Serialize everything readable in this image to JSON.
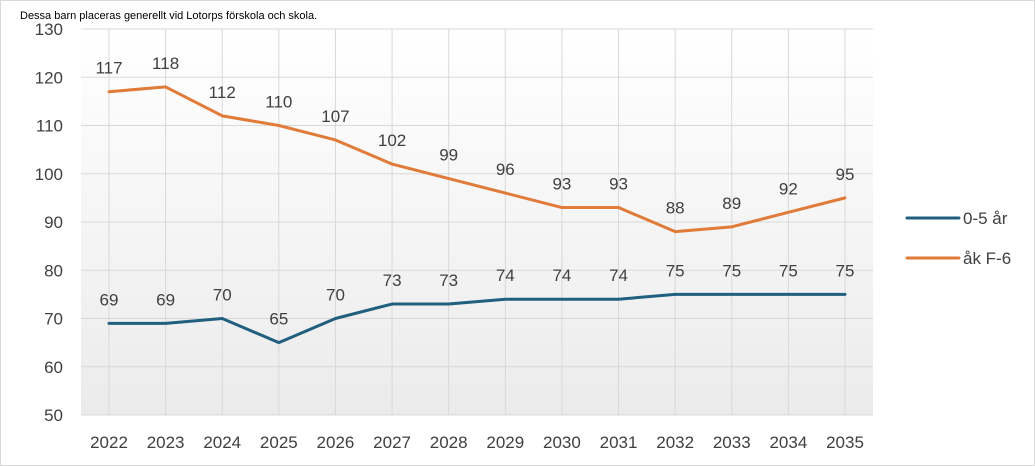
{
  "caption": "Dessa barn placeras generellt vid Lotorps förskola och skola.",
  "chart_data": {
    "type": "line",
    "title": "",
    "xlabel": "",
    "ylabel": "",
    "categories": [
      "2022",
      "2023",
      "2024",
      "2025",
      "2026",
      "2027",
      "2028",
      "2029",
      "2030",
      "2031",
      "2032",
      "2033",
      "2034",
      "2035"
    ],
    "ylim": [
      50,
      130
    ],
    "yticks": [
      50,
      60,
      70,
      80,
      90,
      100,
      110,
      120,
      130
    ],
    "grid": true,
    "legend_position": "right",
    "series": [
      {
        "name": "0-5 år",
        "color": "#215f7f",
        "values": [
          69,
          69,
          70,
          65,
          70,
          73,
          73,
          74,
          74,
          74,
          75,
          75,
          75,
          75
        ]
      },
      {
        "name": "åk F-6",
        "color": "#e07b39",
        "values": [
          117,
          118,
          112,
          110,
          107,
          102,
          99,
          96,
          93,
          93,
          88,
          89,
          92,
          95
        ]
      }
    ]
  }
}
